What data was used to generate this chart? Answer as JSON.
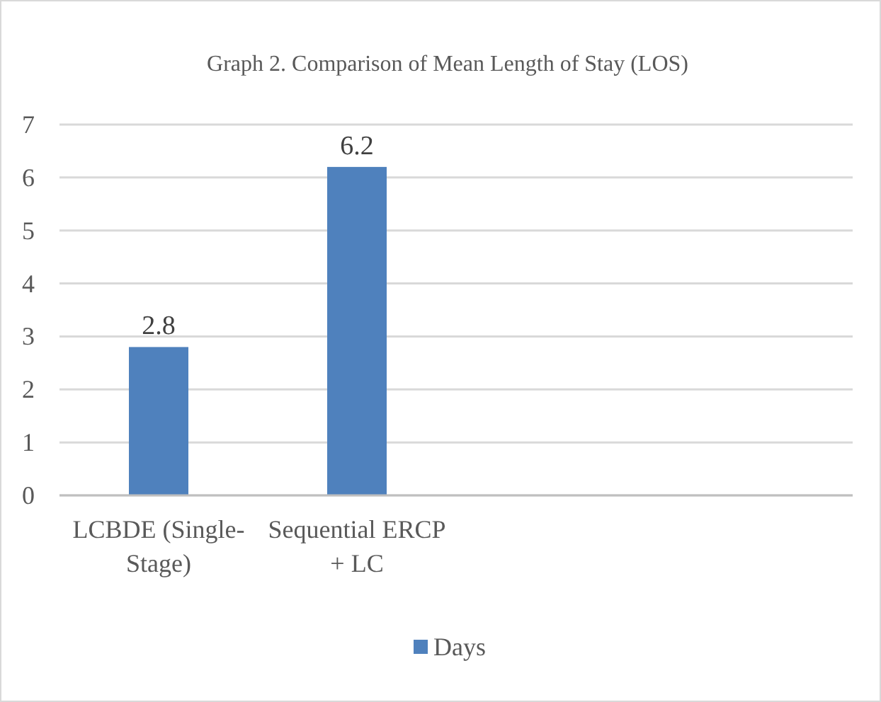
{
  "chart_data": {
    "type": "bar",
    "title": "Graph 2. Comparison of Mean Length of Stay (LOS)",
    "categories": [
      "LCBDE (Single-Stage)",
      "Sequential ERCP + LC",
      null,
      null
    ],
    "series": [
      {
        "name": "Days",
        "color": "#4f81bd",
        "values": [
          2.8,
          6.2,
          null,
          null
        ]
      }
    ],
    "ylim": [
      0,
      7
    ],
    "yticks": [
      0,
      1,
      2,
      3,
      4,
      5,
      6,
      7
    ],
    "grid": "y",
    "legend": "bottom",
    "data_labels": true
  }
}
